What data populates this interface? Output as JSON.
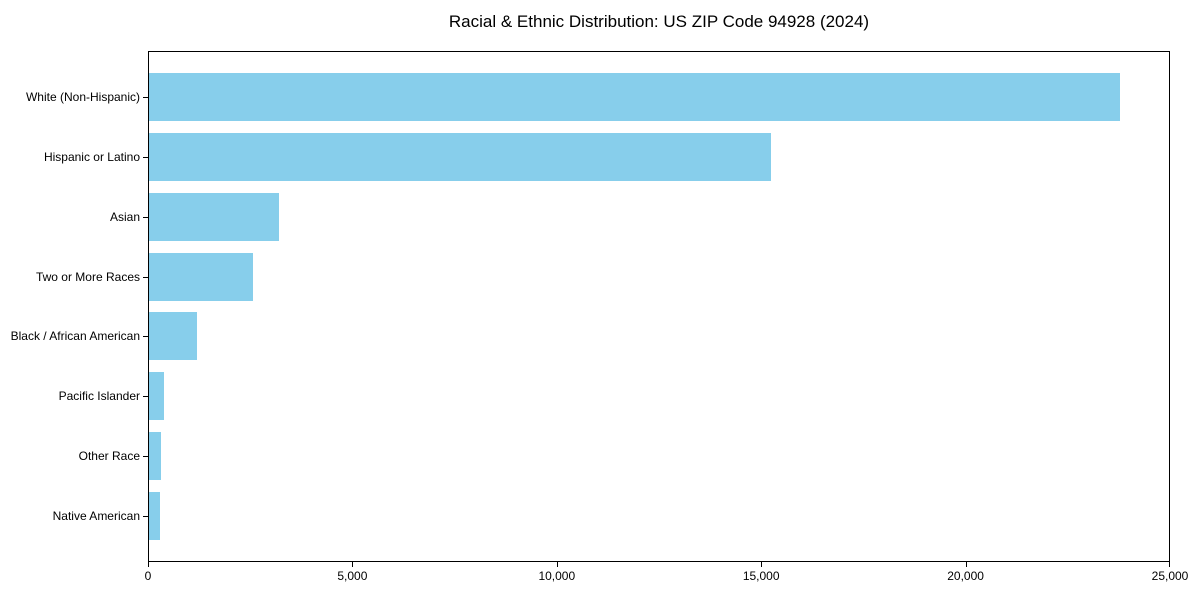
{
  "chart_data": {
    "type": "bar",
    "orientation": "horizontal",
    "title": "Racial & Ethnic Distribution: US ZIP Code 94928 (2024)",
    "categories": [
      "White (Non-Hispanic)",
      "Hispanic or Latino",
      "Asian",
      "Two or More Races",
      "Black / African American",
      "Pacific Islander",
      "Other Race",
      "Native American"
    ],
    "values": [
      23800,
      15240,
      3180,
      2540,
      1170,
      370,
      290,
      260
    ],
    "xlabel": "",
    "ylabel": "",
    "xlim": [
      0,
      25000
    ],
    "xticks": [
      0,
      5000,
      10000,
      15000,
      20000,
      25000
    ],
    "xtick_labels": [
      "0",
      "5,000",
      "10,000",
      "15,000",
      "20,000",
      "25,000"
    ],
    "bar_color": "#87CEEB",
    "frame_color": "#000000",
    "grid": false,
    "legend": null
  }
}
